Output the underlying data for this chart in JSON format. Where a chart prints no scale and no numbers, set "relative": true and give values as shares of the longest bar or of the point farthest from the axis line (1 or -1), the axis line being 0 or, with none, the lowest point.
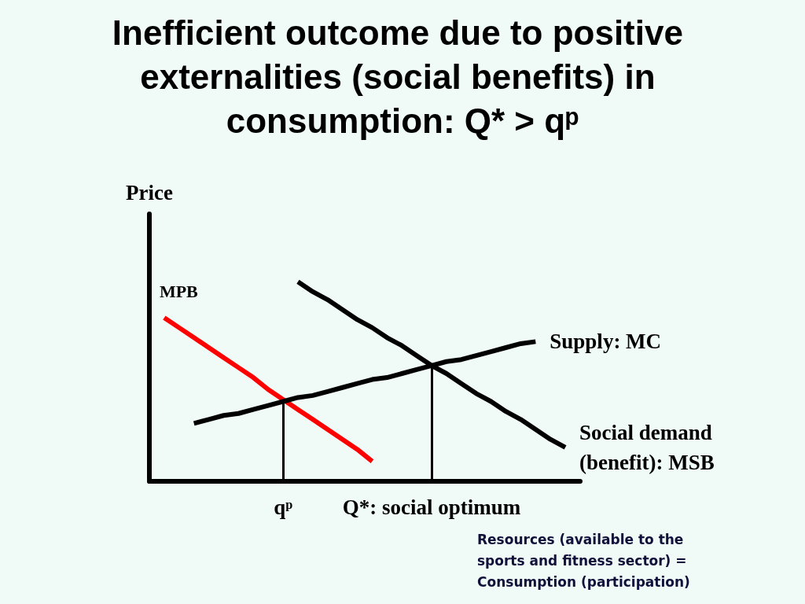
{
  "chart_data": {
    "type": "line",
    "title": "Inefficient outcome due to positive externalities (social benefits) in consumption: Q* > qᵖ",
    "ylabel": "Price",
    "relative": true,
    "tick_labels": "x",
    "grid": false,
    "legend": false,
    "marker": "none",
    "line_style": "solid",
    "categories": [
      null,
      null,
      null,
      null,
      null,
      null,
      null,
      null,
      null,
      "qᵖ",
      null,
      null,
      null,
      null,
      null,
      null,
      null,
      null,
      null,
      "Q*: social optimum",
      null,
      null,
      null,
      null,
      null,
      null,
      null,
      null,
      null,
      null
    ],
    "series": [
      {
        "name": "MPB",
        "color": "#ff0000",
        "values": [
          null,
          0.82,
          0.77,
          0.72,
          0.67,
          0.62,
          0.57,
          0.52,
          0.46,
          0.41,
          0.36,
          0.31,
          0.26,
          0.21,
          0.16,
          0.1,
          null,
          null,
          null,
          null,
          null,
          null,
          null,
          null,
          null,
          null,
          null,
          null,
          null,
          null
        ]
      },
      {
        "name": "Social demand\n(benefit): MSB",
        "color": "#000000",
        "values": [
          null,
          null,
          null,
          null,
          null,
          null,
          null,
          null,
          null,
          null,
          1.0,
          0.95,
          0.91,
          0.86,
          0.81,
          0.77,
          0.72,
          0.68,
          0.63,
          0.58,
          0.54,
          0.49,
          0.44,
          0.4,
          0.35,
          0.31,
          0.26,
          0.21,
          0.17,
          null
        ]
      },
      {
        "name": "Supply: MC",
        "color": "#000000",
        "values": [
          null,
          null,
          null,
          0.29,
          0.31,
          0.33,
          0.34,
          0.36,
          0.38,
          0.4,
          0.42,
          0.43,
          0.45,
          0.47,
          0.49,
          0.51,
          0.52,
          0.54,
          0.56,
          0.58,
          0.6,
          0.61,
          0.63,
          0.65,
          0.67,
          0.69,
          0.7,
          null,
          null,
          null
        ]
      }
    ],
    "ref_lines": [
      {
        "axis": "x",
        "value": "qᵖ",
        "color": "#000000"
      },
      {
        "axis": "x",
        "value": "Q*: social optimum",
        "color": "#000000"
      }
    ],
    "annotations": [
      "Resources (available to the\nsports and fitness sector) =\nConsumption (participation)"
    ]
  }
}
